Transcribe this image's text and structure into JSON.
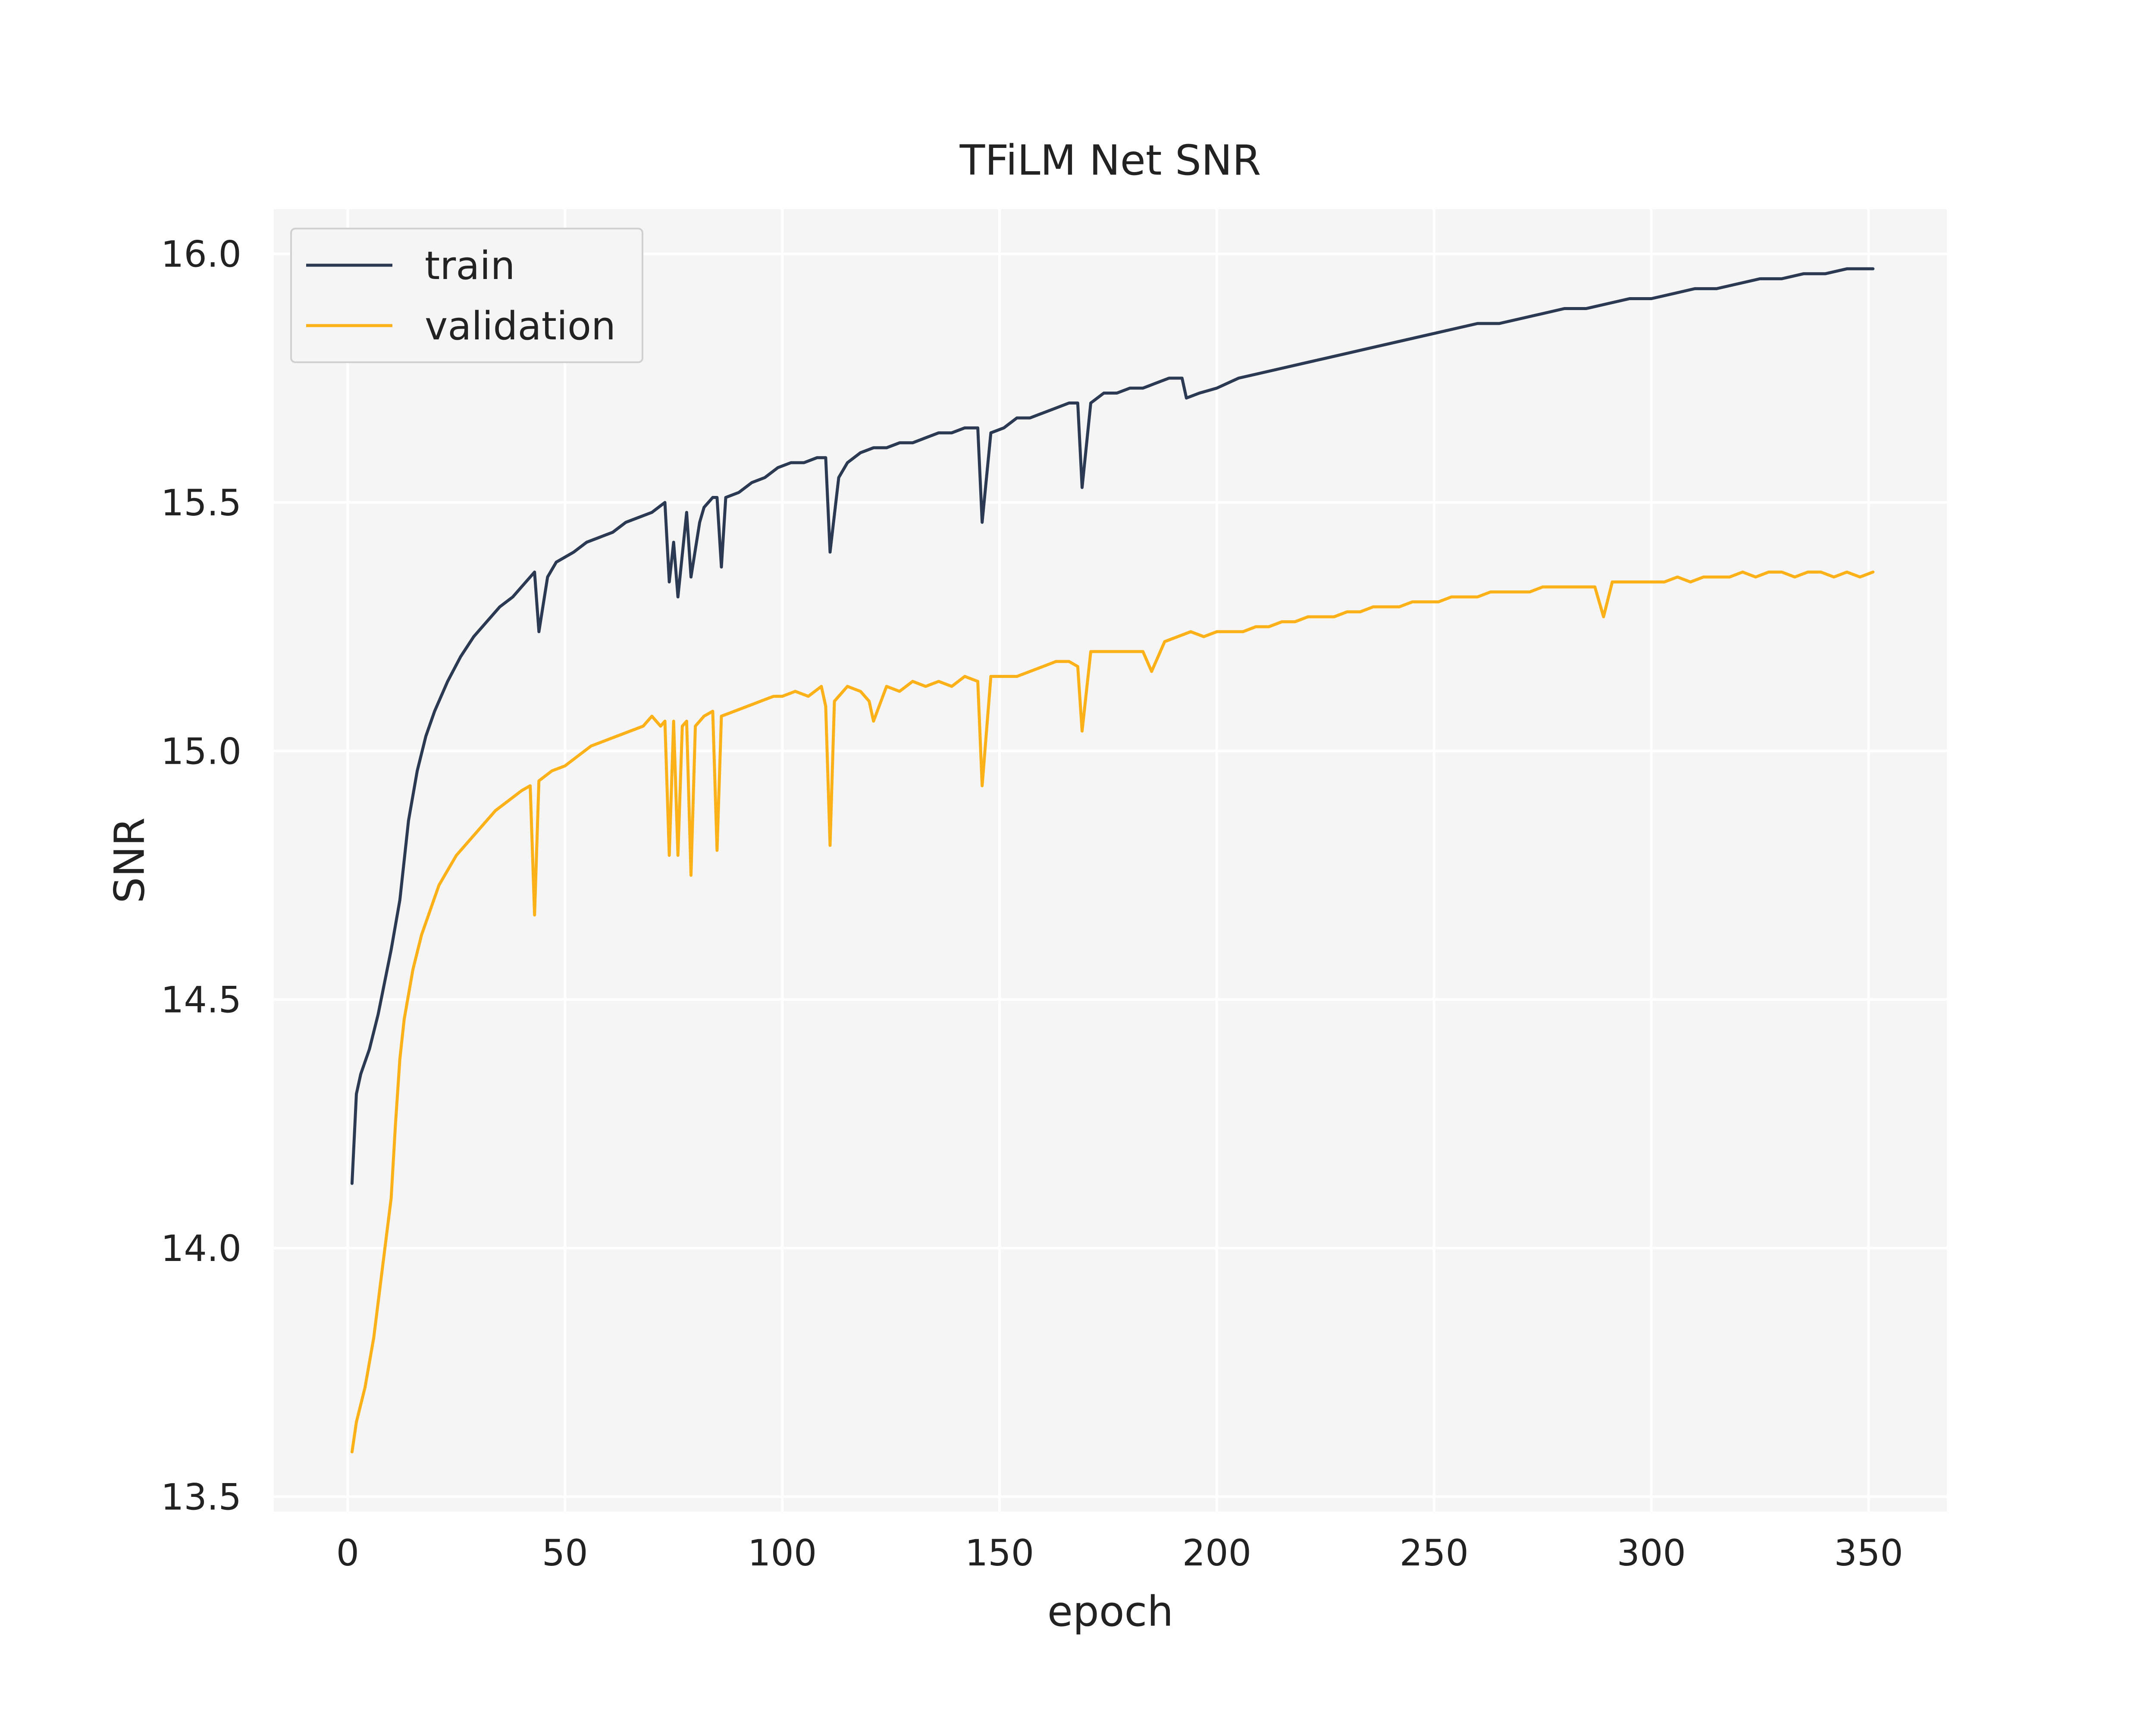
{
  "chart_data": {
    "type": "line",
    "title": "TFiLM Net SNR",
    "xlabel": "epoch",
    "ylabel": "SNR",
    "xlim": [
      -17,
      368
    ],
    "ylim": [
      13.47,
      16.09
    ],
    "xticks": [
      0,
      50,
      100,
      150,
      200,
      250,
      300,
      350
    ],
    "yticks": [
      13.5,
      14.0,
      14.5,
      15.0,
      15.5,
      16.0
    ],
    "ytick_labels": [
      "13.5",
      "14.0",
      "14.5",
      "15.0",
      "15.5",
      "16.0"
    ],
    "grid": true,
    "legend_position": "upper-left",
    "series": [
      {
        "name": "train",
        "color": "#2b3a52",
        "points": [
          [
            1,
            14.13
          ],
          [
            2,
            14.31
          ],
          [
            3,
            14.35
          ],
          [
            5,
            14.4
          ],
          [
            7,
            14.47
          ],
          [
            10,
            14.6
          ],
          [
            12,
            14.7
          ],
          [
            14,
            14.86
          ],
          [
            16,
            14.96
          ],
          [
            18,
            15.03
          ],
          [
            20,
            15.08
          ],
          [
            23,
            15.14
          ],
          [
            26,
            15.19
          ],
          [
            29,
            15.23
          ],
          [
            32,
            15.26
          ],
          [
            35,
            15.29
          ],
          [
            38,
            15.31
          ],
          [
            40,
            15.33
          ],
          [
            42,
            15.35
          ],
          [
            43,
            15.36
          ],
          [
            44,
            15.24
          ],
          [
            46,
            15.35
          ],
          [
            48,
            15.38
          ],
          [
            50,
            15.39
          ],
          [
            52,
            15.4
          ],
          [
            55,
            15.42
          ],
          [
            58,
            15.43
          ],
          [
            61,
            15.44
          ],
          [
            64,
            15.46
          ],
          [
            67,
            15.47
          ],
          [
            70,
            15.48
          ],
          [
            73,
            15.5
          ],
          [
            74,
            15.34
          ],
          [
            75,
            15.42
          ],
          [
            76,
            15.31
          ],
          [
            78,
            15.48
          ],
          [
            79,
            15.35
          ],
          [
            81,
            15.46
          ],
          [
            82,
            15.49
          ],
          [
            84,
            15.51
          ],
          [
            85,
            15.51
          ],
          [
            86,
            15.37
          ],
          [
            87,
            15.51
          ],
          [
            90,
            15.52
          ],
          [
            93,
            15.54
          ],
          [
            96,
            15.55
          ],
          [
            99,
            15.57
          ],
          [
            102,
            15.58
          ],
          [
            105,
            15.58
          ],
          [
            108,
            15.59
          ],
          [
            110,
            15.59
          ],
          [
            111,
            15.4
          ],
          [
            113,
            15.55
          ],
          [
            115,
            15.58
          ],
          [
            118,
            15.6
          ],
          [
            121,
            15.61
          ],
          [
            124,
            15.61
          ],
          [
            127,
            15.62
          ],
          [
            130,
            15.62
          ],
          [
            133,
            15.63
          ],
          [
            136,
            15.64
          ],
          [
            139,
            15.64
          ],
          [
            142,
            15.65
          ],
          [
            145,
            15.65
          ],
          [
            146,
            15.46
          ],
          [
            148,
            15.64
          ],
          [
            151,
            15.65
          ],
          [
            154,
            15.67
          ],
          [
            157,
            15.67
          ],
          [
            160,
            15.68
          ],
          [
            163,
            15.69
          ],
          [
            166,
            15.7
          ],
          [
            168,
            15.7
          ],
          [
            169,
            15.53
          ],
          [
            171,
            15.7
          ],
          [
            174,
            15.72
          ],
          [
            177,
            15.72
          ],
          [
            180,
            15.73
          ],
          [
            183,
            15.73
          ],
          [
            186,
            15.74
          ],
          [
            189,
            15.75
          ],
          [
            192,
            15.75
          ],
          [
            193,
            15.71
          ],
          [
            196,
            15.72
          ],
          [
            200,
            15.73
          ],
          [
            205,
            15.75
          ],
          [
            210,
            15.76
          ],
          [
            215,
            15.77
          ],
          [
            220,
            15.78
          ],
          [
            225,
            15.79
          ],
          [
            230,
            15.8
          ],
          [
            235,
            15.81
          ],
          [
            240,
            15.82
          ],
          [
            245,
            15.83
          ],
          [
            250,
            15.84
          ],
          [
            255,
            15.85
          ],
          [
            260,
            15.86
          ],
          [
            265,
            15.86
          ],
          [
            270,
            15.87
          ],
          [
            275,
            15.88
          ],
          [
            280,
            15.89
          ],
          [
            285,
            15.89
          ],
          [
            290,
            15.9
          ],
          [
            295,
            15.91
          ],
          [
            300,
            15.91
          ],
          [
            305,
            15.92
          ],
          [
            310,
            15.93
          ],
          [
            315,
            15.93
          ],
          [
            320,
            15.94
          ],
          [
            325,
            15.95
          ],
          [
            330,
            15.95
          ],
          [
            335,
            15.96
          ],
          [
            340,
            15.96
          ],
          [
            345,
            15.97
          ],
          [
            351,
            15.97
          ]
        ]
      },
      {
        "name": "validation",
        "color": "#fbb117",
        "points": [
          [
            1,
            13.59
          ],
          [
            2,
            13.65
          ],
          [
            4,
            13.72
          ],
          [
            6,
            13.82
          ],
          [
            8,
            13.96
          ],
          [
            10,
            14.1
          ],
          [
            11,
            14.25
          ],
          [
            12,
            14.38
          ],
          [
            13,
            14.46
          ],
          [
            15,
            14.56
          ],
          [
            17,
            14.63
          ],
          [
            19,
            14.68
          ],
          [
            21,
            14.73
          ],
          [
            23,
            14.76
          ],
          [
            25,
            14.79
          ],
          [
            28,
            14.82
          ],
          [
            31,
            14.85
          ],
          [
            34,
            14.88
          ],
          [
            37,
            14.9
          ],
          [
            40,
            14.92
          ],
          [
            42,
            14.93
          ],
          [
            43,
            14.67
          ],
          [
            44,
            14.94
          ],
          [
            47,
            14.96
          ],
          [
            50,
            14.97
          ],
          [
            53,
            14.99
          ],
          [
            56,
            15.01
          ],
          [
            59,
            15.02
          ],
          [
            62,
            15.03
          ],
          [
            65,
            15.04
          ],
          [
            68,
            15.05
          ],
          [
            70,
            15.07
          ],
          [
            72,
            15.05
          ],
          [
            73,
            15.06
          ],
          [
            74,
            14.79
          ],
          [
            75,
            15.06
          ],
          [
            76,
            14.79
          ],
          [
            77,
            15.05
          ],
          [
            78,
            15.06
          ],
          [
            79,
            14.75
          ],
          [
            80,
            15.05
          ],
          [
            82,
            15.07
          ],
          [
            84,
            15.08
          ],
          [
            85,
            14.8
          ],
          [
            86,
            15.07
          ],
          [
            89,
            15.08
          ],
          [
            92,
            15.09
          ],
          [
            95,
            15.1
          ],
          [
            98,
            15.11
          ],
          [
            100,
            15.11
          ],
          [
            103,
            15.12
          ],
          [
            106,
            15.11
          ],
          [
            109,
            15.13
          ],
          [
            110,
            15.09
          ],
          [
            111,
            14.81
          ],
          [
            112,
            15.1
          ],
          [
            115,
            15.13
          ],
          [
            118,
            15.12
          ],
          [
            120,
            15.1
          ],
          [
            121,
            15.06
          ],
          [
            124,
            15.13
          ],
          [
            127,
            15.12
          ],
          [
            130,
            15.14
          ],
          [
            133,
            15.13
          ],
          [
            136,
            15.14
          ],
          [
            139,
            15.13
          ],
          [
            142,
            15.15
          ],
          [
            145,
            15.14
          ],
          [
            146,
            14.93
          ],
          [
            148,
            15.15
          ],
          [
            151,
            15.15
          ],
          [
            154,
            15.15
          ],
          [
            157,
            15.16
          ],
          [
            160,
            15.17
          ],
          [
            163,
            15.18
          ],
          [
            166,
            15.18
          ],
          [
            168,
            15.17
          ],
          [
            169,
            15.04
          ],
          [
            171,
            15.2
          ],
          [
            174,
            15.2
          ],
          [
            177,
            15.2
          ],
          [
            180,
            15.2
          ],
          [
            183,
            15.2
          ],
          [
            185,
            15.16
          ],
          [
            188,
            15.22
          ],
          [
            191,
            15.23
          ],
          [
            194,
            15.24
          ],
          [
            197,
            15.23
          ],
          [
            200,
            15.24
          ],
          [
            203,
            15.24
          ],
          [
            206,
            15.24
          ],
          [
            209,
            15.25
          ],
          [
            212,
            15.25
          ],
          [
            215,
            15.26
          ],
          [
            218,
            15.26
          ],
          [
            221,
            15.27
          ],
          [
            224,
            15.27
          ],
          [
            227,
            15.27
          ],
          [
            230,
            15.28
          ],
          [
            233,
            15.28
          ],
          [
            236,
            15.29
          ],
          [
            239,
            15.29
          ],
          [
            242,
            15.29
          ],
          [
            245,
            15.3
          ],
          [
            248,
            15.3
          ],
          [
            251,
            15.3
          ],
          [
            254,
            15.31
          ],
          [
            257,
            15.31
          ],
          [
            260,
            15.31
          ],
          [
            263,
            15.32
          ],
          [
            266,
            15.32
          ],
          [
            269,
            15.32
          ],
          [
            272,
            15.32
          ],
          [
            275,
            15.33
          ],
          [
            278,
            15.33
          ],
          [
            281,
            15.33
          ],
          [
            284,
            15.33
          ],
          [
            287,
            15.33
          ],
          [
            289,
            15.27
          ],
          [
            291,
            15.34
          ],
          [
            294,
            15.34
          ],
          [
            297,
            15.34
          ],
          [
            300,
            15.34
          ],
          [
            303,
            15.34
          ],
          [
            306,
            15.35
          ],
          [
            309,
            15.34
          ],
          [
            312,
            15.35
          ],
          [
            315,
            15.35
          ],
          [
            318,
            15.35
          ],
          [
            321,
            15.36
          ],
          [
            324,
            15.35
          ],
          [
            327,
            15.36
          ],
          [
            330,
            15.36
          ],
          [
            333,
            15.35
          ],
          [
            336,
            15.36
          ],
          [
            339,
            15.36
          ],
          [
            342,
            15.35
          ],
          [
            345,
            15.36
          ],
          [
            348,
            15.35
          ],
          [
            351,
            15.36
          ]
        ]
      }
    ]
  }
}
